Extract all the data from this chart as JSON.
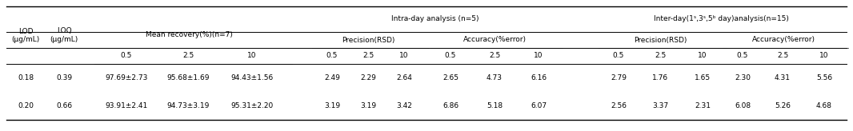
{
  "lod_values": [
    "0.18",
    "0.20"
  ],
  "loq_values": [
    "0.39",
    "0.66"
  ],
  "mean_recovery": [
    [
      "97.69±2.73",
      "95.68±1.69",
      "94.43±1.56"
    ],
    [
      "93.91±2.41",
      "94.73±3.19",
      "95.31±2.20"
    ]
  ],
  "intra_precision": [
    [
      "2.49",
      "2.29",
      "2.64"
    ],
    [
      "3.19",
      "3.19",
      "3.42"
    ]
  ],
  "intra_accuracy": [
    [
      "2.65",
      "4.73",
      "6.16"
    ],
    [
      "6.86",
      "5.18",
      "6.07"
    ]
  ],
  "inter_precision": [
    [
      "2.79",
      "1.76",
      "1.65"
    ],
    [
      "2.56",
      "3.37",
      "2.31"
    ]
  ],
  "inter_accuracy": [
    [
      "2.30",
      "4.31",
      "5.56"
    ],
    [
      "6.08",
      "5.26",
      "4.68"
    ]
  ],
  "conc": [
    "0.5",
    "2.5",
    "10"
  ],
  "header1_intra": "Intra-day analysis (n=5)",
  "header1_inter": "Inter-day(1ˢ,3ˢ,5ᵇ day)analysis(n=15)",
  "header2_mr": "Mean recovery(%)(n=7)",
  "header2_prec": "Precision(RSD)",
  "header2_acc": "Accuracy(%error)",
  "label_lod": "LOD",
  "label_lod_unit": "(μg/mL)",
  "label_loq": "LOQ",
  "label_loq_unit": "(μg/mL)",
  "font_size": 6.5,
  "bg_color": "#ffffff"
}
